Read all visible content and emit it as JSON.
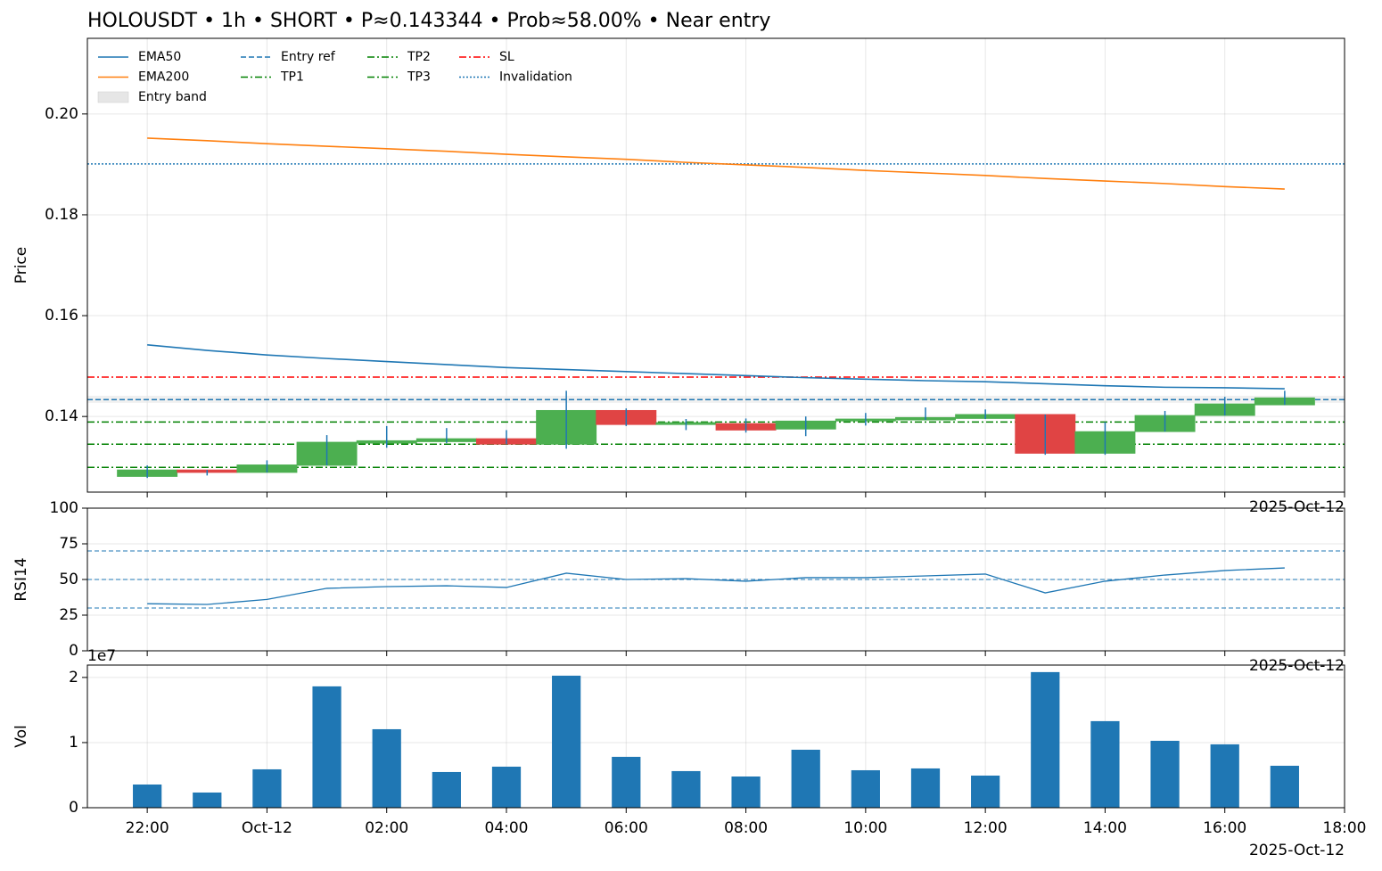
{
  "chart_data": [
    {
      "type": "candlestick",
      "title": "HOLOUSDT • 1h • SHORT • P≈0.143344 • Prob≈58.00% • Near entry",
      "ylabel": "Price",
      "x_offset_label": "2025-Oct-12",
      "x": [
        "2025-10-11T22:00",
        "2025-10-11T23:00",
        "2025-10-12T00:00",
        "2025-10-12T01:00",
        "2025-10-12T02:00",
        "2025-10-12T03:00",
        "2025-10-12T04:00",
        "2025-10-12T05:00",
        "2025-10-12T06:00",
        "2025-10-12T07:00",
        "2025-10-12T08:00",
        "2025-10-12T09:00",
        "2025-10-12T10:00",
        "2025-10-12T11:00",
        "2025-10-12T12:00",
        "2025-10-12T13:00",
        "2025-10-12T14:00",
        "2025-10-12T15:00",
        "2025-10-12T16:00",
        "2025-10-12T17:00"
      ],
      "open": [
        0.1281,
        0.1294,
        0.1289,
        0.1303,
        0.1347,
        0.135,
        0.1356,
        0.1345,
        0.1412,
        0.1384,
        0.1386,
        0.1375,
        0.1391,
        0.1393,
        0.1396,
        0.1404,
        0.1327,
        0.137,
        0.1402,
        0.1423
      ],
      "high": [
        0.1303,
        0.1294,
        0.1313,
        0.1363,
        0.1381,
        0.1377,
        0.1373,
        0.1451,
        0.1416,
        0.1395,
        0.1396,
        0.14,
        0.1407,
        0.1418,
        0.1414,
        0.1404,
        0.1389,
        0.1411,
        0.1439,
        0.1451
      ],
      "low": [
        0.1278,
        0.1283,
        0.1289,
        0.1303,
        0.1338,
        0.1347,
        0.1345,
        0.1336,
        0.1381,
        0.1373,
        0.1368,
        0.1361,
        0.1382,
        0.1393,
        0.1395,
        0.1324,
        0.1324,
        0.137,
        0.1402,
        0.1423
      ],
      "close": [
        0.1294,
        0.1289,
        0.1304,
        0.1349,
        0.1352,
        0.1356,
        0.1345,
        0.1412,
        0.1384,
        0.1388,
        0.1373,
        0.1391,
        0.1395,
        0.1398,
        0.1404,
        0.1327,
        0.137,
        0.1402,
        0.1425,
        0.1437
      ],
      "up_color": "#4caf50",
      "down_color": "#e04444",
      "wick_color": "#1f77b4",
      "series": [
        {
          "name": "EMA50",
          "color": "#1f77b4",
          "values": [
            0.1542,
            0.1531,
            0.1522,
            0.1515,
            0.1509,
            0.1503,
            0.1497,
            0.1493,
            0.1489,
            0.1485,
            0.1481,
            0.1477,
            0.1474,
            0.1471,
            0.1469,
            0.1465,
            0.1461,
            0.1458,
            0.1457,
            0.1455
          ]
        },
        {
          "name": "EMA200",
          "color": "#ff7f0e",
          "values": [
            0.1952,
            0.1947,
            0.1941,
            0.1936,
            0.1931,
            0.1926,
            0.192,
            0.1915,
            0.191,
            0.1904,
            0.1899,
            0.1894,
            0.1888,
            0.1883,
            0.1878,
            0.1872,
            0.1867,
            0.1862,
            0.1856,
            0.1851
          ]
        }
      ],
      "band": {
        "name": "Entry band",
        "range": [
          0.1427,
          0.1441
        ],
        "color": "#e6e6e6"
      },
      "levels": [
        {
          "name": "Entry ref",
          "value": 0.14334,
          "color": "#1f77b4",
          "style": "dashed"
        },
        {
          "name": "TP1",
          "value": 0.1389,
          "color": "#008000",
          "style": "dashdot"
        },
        {
          "name": "TP2",
          "value": 0.1345,
          "color": "#008000",
          "style": "dashdot"
        },
        {
          "name": "TP3",
          "value": 0.1299,
          "color": "#008000",
          "style": "dashdot"
        },
        {
          "name": "SL",
          "value": 0.1478,
          "color": "#ff0000",
          "style": "dashdot"
        },
        {
          "name": "Invalidation",
          "value": 0.1901,
          "color": "#1f77b4",
          "style": "dotted"
        }
      ],
      "xlim": [
        "2025-10-11T21:00",
        "2025-10-12T18:00"
      ],
      "xticks": [
        {
          "value": "2025-10-11T22:00",
          "label": "22:00"
        },
        {
          "value": "2025-10-12T00:00",
          "label": "Oct-12"
        },
        {
          "value": "2025-10-12T02:00",
          "label": "02:00"
        },
        {
          "value": "2025-10-12T04:00",
          "label": "04:00"
        },
        {
          "value": "2025-10-12T06:00",
          "label": "06:00"
        },
        {
          "value": "2025-10-12T08:00",
          "label": "08:00"
        },
        {
          "value": "2025-10-12T10:00",
          "label": "10:00"
        },
        {
          "value": "2025-10-12T12:00",
          "label": "12:00"
        },
        {
          "value": "2025-10-12T14:00",
          "label": "14:00"
        },
        {
          "value": "2025-10-12T16:00",
          "label": "16:00"
        },
        {
          "value": "2025-10-12T18:00",
          "label": "18:00"
        }
      ],
      "show_xtick_labels": false,
      "ylim": [
        0.125,
        0.215
      ],
      "yticks": [
        0.14,
        0.16,
        0.18,
        {
          "value": 0.2,
          "label": "0.20"
        }
      ],
      "grid": true,
      "legend": "upper left"
    },
    {
      "type": "line",
      "ylabel": "RSI14",
      "x_offset_label": "2025-Oct-12",
      "x": [
        "2025-10-11T22:00",
        "2025-10-11T23:00",
        "2025-10-12T00:00",
        "2025-10-12T01:00",
        "2025-10-12T02:00",
        "2025-10-12T03:00",
        "2025-10-12T04:00",
        "2025-10-12T05:00",
        "2025-10-12T06:00",
        "2025-10-12T07:00",
        "2025-10-12T08:00",
        "2025-10-12T09:00",
        "2025-10-12T10:00",
        "2025-10-12T11:00",
        "2025-10-12T12:00",
        "2025-10-12T13:00",
        "2025-10-12T14:00",
        "2025-10-12T15:00",
        "2025-10-12T16:00",
        "2025-10-12T17:00"
      ],
      "values": [
        33,
        32.5,
        36,
        43.8,
        45,
        45.6,
        44.4,
        54.4,
        50,
        50.6,
        48.8,
        51.3,
        51.3,
        52.5,
        53.8,
        40.6,
        48.8,
        53.1,
        56.3,
        58.1
      ],
      "color": "#1f77b4",
      "reference_lines": [
        70,
        50,
        30
      ],
      "reference_color": "#1f77b4",
      "xlim": [
        "2025-10-11T21:00",
        "2025-10-12T18:00"
      ],
      "xticks": [
        {
          "value": "2025-10-11T22:00",
          "label": "22:00"
        },
        {
          "value": "2025-10-12T00:00",
          "label": "Oct-12"
        },
        {
          "value": "2025-10-12T02:00",
          "label": "02:00"
        },
        {
          "value": "2025-10-12T04:00",
          "label": "04:00"
        },
        {
          "value": "2025-10-12T06:00",
          "label": "06:00"
        },
        {
          "value": "2025-10-12T08:00",
          "label": "08:00"
        },
        {
          "value": "2025-10-12T10:00",
          "label": "10:00"
        },
        {
          "value": "2025-10-12T12:00",
          "label": "12:00"
        },
        {
          "value": "2025-10-12T14:00",
          "label": "14:00"
        },
        {
          "value": "2025-10-12T16:00",
          "label": "16:00"
        },
        {
          "value": "2025-10-12T18:00",
          "label": "18:00"
        }
      ],
      "show_xtick_labels": false,
      "ylim": [
        0,
        100
      ],
      "yticks": [
        0,
        25,
        50,
        75,
        100
      ],
      "grid": true
    },
    {
      "type": "bar",
      "ylabel": "Vol",
      "x_offset_label": "2025-Oct-12",
      "y_multiplier_label": "1e7",
      "x": [
        "2025-10-11T22:00",
        "2025-10-11T23:00",
        "2025-10-12T00:00",
        "2025-10-12T01:00",
        "2025-10-12T02:00",
        "2025-10-12T03:00",
        "2025-10-12T04:00",
        "2025-10-12T05:00",
        "2025-10-12T06:00",
        "2025-10-12T07:00",
        "2025-10-12T08:00",
        "2025-10-12T09:00",
        "2025-10-12T10:00",
        "2025-10-12T11:00",
        "2025-10-12T12:00",
        "2025-10-12T13:00",
        "2025-10-12T14:00",
        "2025-10-12T15:00",
        "2025-10-12T16:00",
        "2025-10-12T17:00"
      ],
      "values": [
        3560000,
        2330000,
        5890000,
        18630000,
        12050000,
        5480000,
        6300000,
        20270000,
        7810000,
        5620000,
        4790000,
        8900000,
        5750000,
        6030000,
        4930000,
        20820000,
        13290000,
        10270000,
        9730000,
        6440000
      ],
      "color": "#1f77b4",
      "xlim": [
        "2025-10-11T21:00",
        "2025-10-12T18:00"
      ],
      "xticks": [
        {
          "value": "2025-10-11T22:00",
          "label": "22:00"
        },
        {
          "value": "2025-10-12T00:00",
          "label": "Oct-12"
        },
        {
          "value": "2025-10-12T02:00",
          "label": "02:00"
        },
        {
          "value": "2025-10-12T04:00",
          "label": "04:00"
        },
        {
          "value": "2025-10-12T06:00",
          "label": "06:00"
        },
        {
          "value": "2025-10-12T08:00",
          "label": "08:00"
        },
        {
          "value": "2025-10-12T10:00",
          "label": "10:00"
        },
        {
          "value": "2025-10-12T12:00",
          "label": "12:00"
        },
        {
          "value": "2025-10-12T14:00",
          "label": "14:00"
        },
        {
          "value": "2025-10-12T16:00",
          "label": "16:00"
        },
        {
          "value": "2025-10-12T18:00",
          "label": "18:00"
        }
      ],
      "show_xtick_labels": true,
      "ylim": [
        0,
        21900000
      ],
      "yticks": [
        0,
        {
          "value": 10000000,
          "label": "1"
        },
        {
          "value": 20000000,
          "label": "2"
        }
      ],
      "grid": true
    }
  ]
}
